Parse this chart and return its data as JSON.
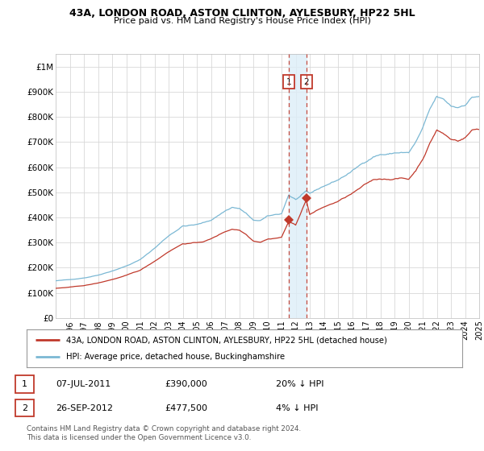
{
  "title": "43A, LONDON ROAD, ASTON CLINTON, AYLESBURY, HP22 5HL",
  "subtitle": "Price paid vs. HM Land Registry's House Price Index (HPI)",
  "ylim": [
    0,
    1050000
  ],
  "yticks": [
    0,
    100000,
    200000,
    300000,
    400000,
    500000,
    600000,
    700000,
    800000,
    900000,
    1000000
  ],
  "ytick_labels": [
    "£0",
    "£100K",
    "£200K",
    "£300K",
    "£400K",
    "£500K",
    "£600K",
    "£700K",
    "£800K",
    "£900K",
    "£1M"
  ],
  "hpi_color": "#7bb8d4",
  "price_color": "#c0392b",
  "background_color": "#ffffff",
  "grid_color": "#d8d8d8",
  "legend_label_red": "43A, LONDON ROAD, ASTON CLINTON, AYLESBURY, HP22 5HL (detached house)",
  "legend_label_blue": "HPI: Average price, detached house, Buckinghamshire",
  "annotation1_date": "07-JUL-2011",
  "annotation1_price": "£390,000",
  "annotation1_hpi": "20% ↓ HPI",
  "annotation2_date": "26-SEP-2012",
  "annotation2_price": "£477,500",
  "annotation2_hpi": "4% ↓ HPI",
  "footnote": "Contains HM Land Registry data © Crown copyright and database right 2024.\nThis data is licensed under the Open Government Licence v3.0.",
  "sale1_x": 2011.5,
  "sale1_y": 390000,
  "sale2_x": 2012.75,
  "sale2_y": 477500,
  "xmin": 1995,
  "xmax": 2025,
  "xtick_years": [
    1996,
    1997,
    1998,
    1999,
    2000,
    2001,
    2002,
    2003,
    2004,
    2005,
    2006,
    2007,
    2008,
    2009,
    2010,
    2011,
    2012,
    2013,
    2014,
    2015,
    2016,
    2017,
    2018,
    2019,
    2020,
    2021,
    2022,
    2023,
    2024,
    2025
  ]
}
